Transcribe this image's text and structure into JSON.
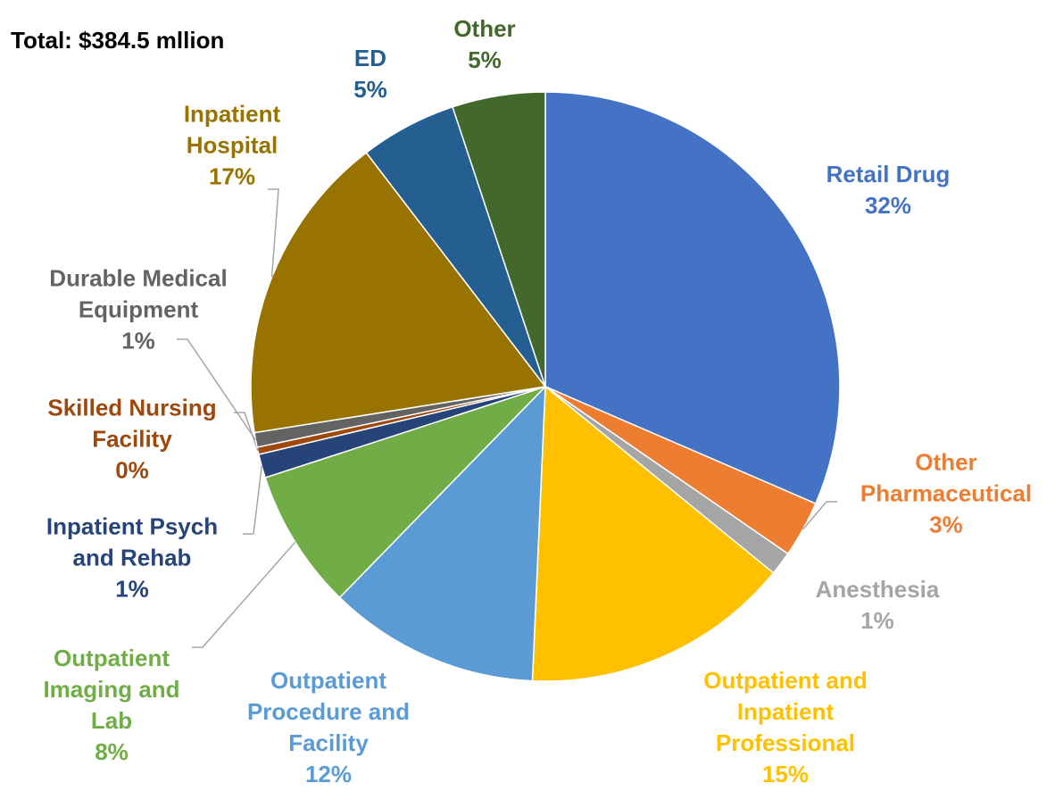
{
  "chart_data": {
    "type": "pie",
    "title": "Total: $384.5 mllion",
    "categories": [
      "Retail Drug",
      "Other\nPharmaceutical",
      "Anesthesia",
      "Outpatient and\nInpatient\nProfessional",
      "Outpatient\nProcedure and\nFacility",
      "Outpatient\nImaging and\nLab",
      "Inpatient Psych\nand Rehab",
      "Skilled Nursing\nFacility",
      "Durable Medical\nEquipment",
      "Inpatient\nHospital",
      "ED",
      "Other"
    ],
    "values": [
      31.5,
      3.1,
      1.3,
      14.8,
      11.6,
      7.7,
      1.3,
      0.4,
      0.8,
      17.1,
      5.3,
      5.1
    ],
    "value_labels": [
      "32%",
      "3%",
      "1%",
      "15%",
      "12%",
      "8%",
      "1%",
      "0%",
      "1%",
      "17%",
      "5%",
      "5%"
    ],
    "colors": [
      "#4472c4",
      "#ed7d31",
      "#a5a5a5",
      "#ffc000",
      "#5b9bd5",
      "#70ad47",
      "#264478",
      "#9e480e",
      "#636363",
      "#997300",
      "#255e91",
      "#43682b"
    ]
  }
}
